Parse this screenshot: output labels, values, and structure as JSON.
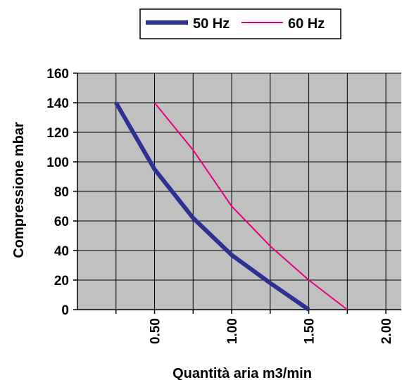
{
  "chart_data": {
    "type": "line",
    "title": "",
    "xlabel": "Quantità aria m3/min",
    "ylabel": "Compressione mbar",
    "xlim": [
      0,
      2.1
    ],
    "ylim": [
      0,
      160
    ],
    "x_ticks": [
      0.5,
      1.0,
      1.5,
      2.0
    ],
    "x_tick_labels": [
      "0.50",
      "1.00",
      "1.50",
      "2.00"
    ],
    "x_minor_step": 0.25,
    "y_ticks": [
      0,
      20,
      40,
      60,
      80,
      100,
      120,
      140,
      160
    ],
    "y_tick_labels": [
      "0",
      "20",
      "40",
      "60",
      "80",
      "100",
      "120",
      "140",
      "160"
    ],
    "grid": true,
    "plot_background": "#c0c0c0",
    "legend_position": "top",
    "series": [
      {
        "name": "50 Hz",
        "color": "#2e3192",
        "x": [
          0.25,
          0.5,
          0.75,
          1.0,
          1.25,
          1.5
        ],
        "y": [
          140,
          95,
          62,
          37,
          18,
          0
        ]
      },
      {
        "name": "60 Hz",
        "color": "#e6007e",
        "x": [
          0.5,
          0.75,
          1.0,
          1.25,
          1.5,
          1.75
        ],
        "y": [
          140,
          108,
          70,
          43,
          20,
          0
        ]
      }
    ]
  }
}
